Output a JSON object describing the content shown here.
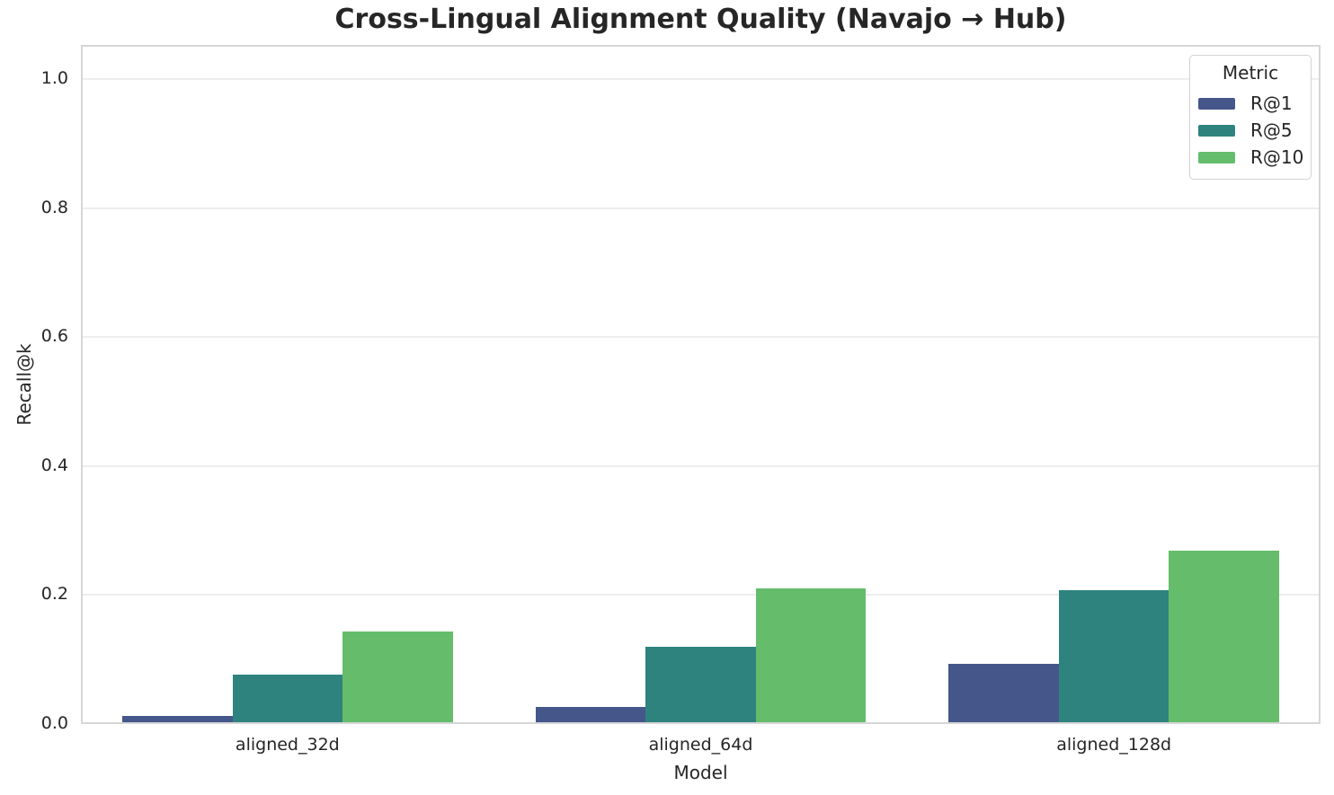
{
  "chart_data": {
    "type": "bar",
    "title": "Cross-Lingual Alignment Quality (Navajo → Hub)",
    "xlabel": "Model",
    "ylabel": "Recall@k",
    "categories": [
      "aligned_32d",
      "aligned_64d",
      "aligned_128d"
    ],
    "series": [
      {
        "name": "R@1",
        "color": "#45568b",
        "values": [
          0.013,
          0.027,
          0.094
        ]
      },
      {
        "name": "R@5",
        "color": "#2e837e",
        "values": [
          0.077,
          0.12,
          0.207
        ]
      },
      {
        "name": "R@10",
        "color": "#65bd6b",
        "values": [
          0.143,
          0.21,
          0.269
        ]
      }
    ],
    "ylim": [
      0,
      1.053
    ],
    "yticks": [
      0.0,
      0.2,
      0.4,
      0.6,
      0.8,
      1.0
    ],
    "ytick_format": "one_decimal",
    "grid": "horizontal",
    "legend": {
      "title": "Metric",
      "position": "upper right"
    },
    "colors": {
      "text": "#262626",
      "spine": "#d6d6d6",
      "gridline": "#ededed",
      "background": "#ffffff"
    }
  }
}
